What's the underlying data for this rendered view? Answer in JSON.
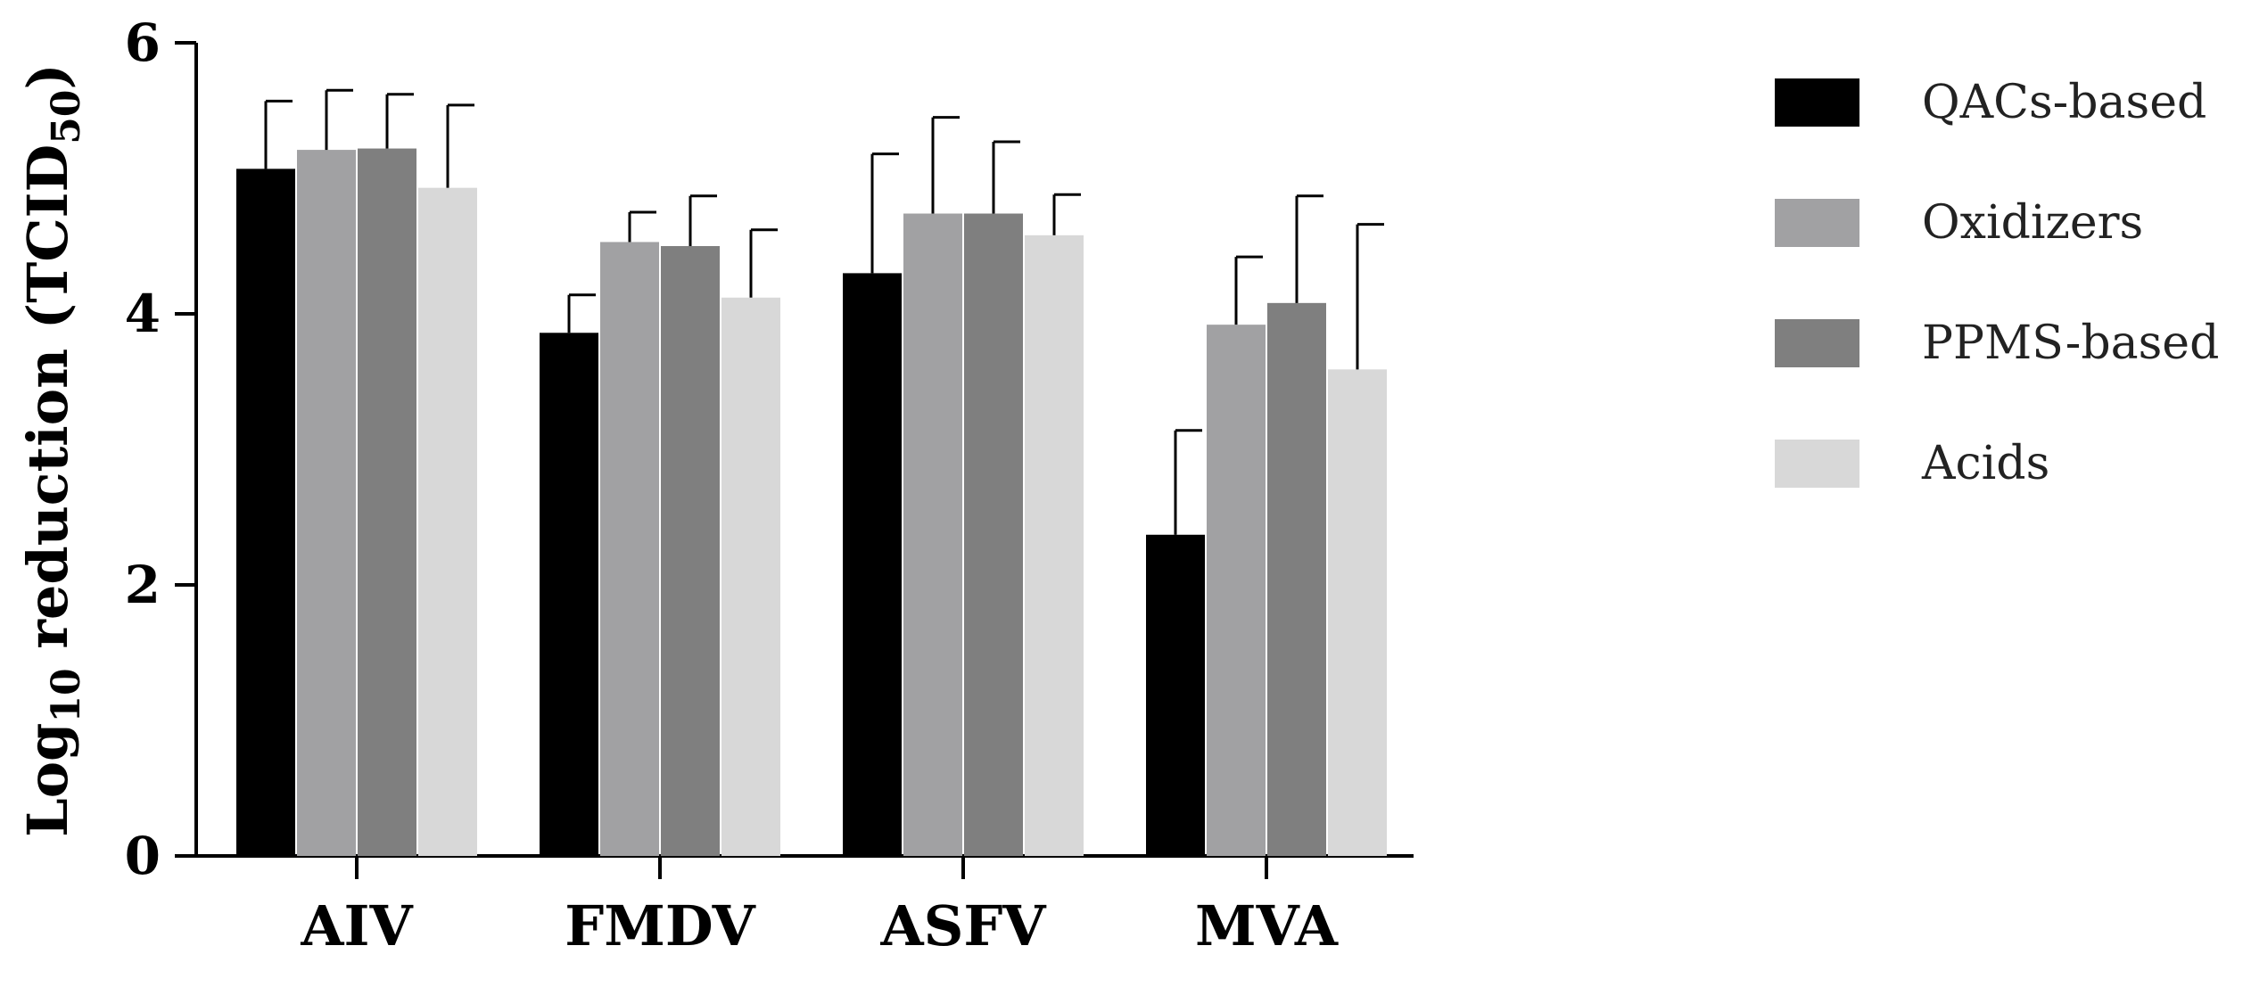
{
  "chart_data": {
    "type": "bar",
    "categories": [
      "AIV",
      "FMDV",
      "ASFV",
      "MVA"
    ],
    "series": [
      {
        "name": "QACs-based",
        "color": "#000000",
        "values": [
          5.07,
          3.86,
          4.3,
          2.37
        ],
        "errors": [
          0.5,
          0.28,
          0.88,
          0.77
        ]
      },
      {
        "name": "Oxidizers",
        "color": "#a1a1a3",
        "values": [
          5.21,
          4.53,
          4.74,
          3.92
        ],
        "errors": [
          0.44,
          0.22,
          0.71,
          0.5
        ]
      },
      {
        "name": "PPMS-based",
        "color": "#7f7f7f",
        "values": [
          5.22,
          4.5,
          4.74,
          4.08
        ],
        "errors": [
          0.4,
          0.37,
          0.53,
          0.79
        ]
      },
      {
        "name": "Acids",
        "color": "#d8d8d8",
        "values": [
          4.93,
          4.12,
          4.58,
          3.59
        ],
        "errors": [
          0.61,
          0.5,
          0.3,
          1.07
        ]
      }
    ],
    "title": "",
    "xlabel": "",
    "ylabel": {
      "main": "Log",
      "sub1": "10",
      "middle": " reduction (TCID",
      "sub2": "50",
      "end": ")"
    },
    "ylim": [
      0,
      6
    ],
    "yticks": [
      0,
      2,
      4,
      6
    ],
    "legend_position": "right"
  }
}
